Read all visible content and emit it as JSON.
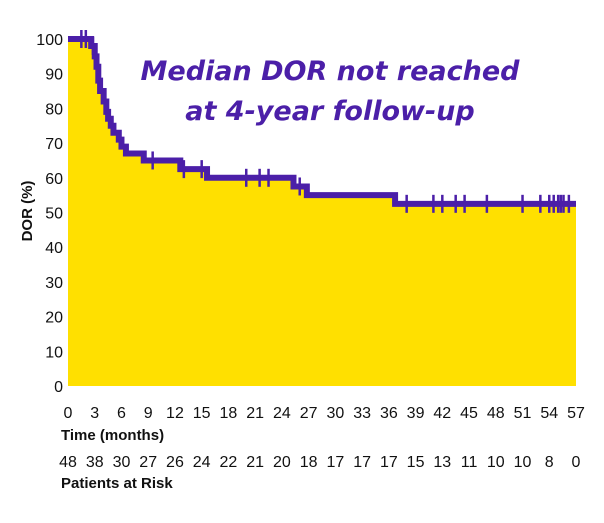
{
  "chart_data": {
    "type": "area",
    "annotation_lines": [
      "Median DOR not reached",
      "at 4-year follow-up"
    ],
    "ylabel": "DOR (%)",
    "xlabel": "Time (months)",
    "risk_label": "Patients at Risk",
    "ylim": [
      0,
      100
    ],
    "xlim": [
      0,
      57
    ],
    "y_ticks": [
      0,
      10,
      20,
      30,
      40,
      50,
      60,
      70,
      80,
      90,
      100
    ],
    "x_ticks": [
      0,
      3,
      6,
      9,
      12,
      15,
      18,
      21,
      24,
      27,
      30,
      33,
      36,
      39,
      42,
      45,
      48,
      51,
      54,
      57
    ],
    "patients_at_risk": [
      48,
      38,
      30,
      27,
      26,
      24,
      22,
      21,
      20,
      18,
      17,
      17,
      17,
      15,
      13,
      11,
      10,
      10,
      8,
      0
    ],
    "series": [
      {
        "name": "DOR",
        "steps": [
          [
            0,
            100
          ],
          [
            2.6,
            98
          ],
          [
            3.0,
            95
          ],
          [
            3.2,
            92
          ],
          [
            3.4,
            88
          ],
          [
            3.6,
            85
          ],
          [
            4.0,
            82
          ],
          [
            4.3,
            79
          ],
          [
            4.5,
            77
          ],
          [
            4.8,
            75
          ],
          [
            5.1,
            73
          ],
          [
            5.7,
            71
          ],
          [
            6.0,
            69
          ],
          [
            6.5,
            67
          ],
          [
            8.5,
            65
          ],
          [
            12.6,
            62.5
          ],
          [
            15.6,
            60
          ],
          [
            25.3,
            57.5
          ],
          [
            26.8,
            55
          ],
          [
            36.7,
            52.5
          ],
          [
            57,
            52.5
          ]
        ],
        "end_x": 57,
        "censor_x": [
          1.5,
          2.0,
          2.8,
          9.5,
          13.0,
          15.0,
          20.0,
          21.5,
          22.5,
          26.0,
          38.0,
          41.0,
          42.0,
          43.5,
          44.5,
          47.0,
          51.0,
          53.0,
          54.0,
          54.5,
          55.0,
          55.3,
          55.6,
          56.2
        ]
      }
    ],
    "colors": {
      "fill": "#FFE000",
      "line": "#4B1FA8",
      "text": "#111111"
    }
  }
}
